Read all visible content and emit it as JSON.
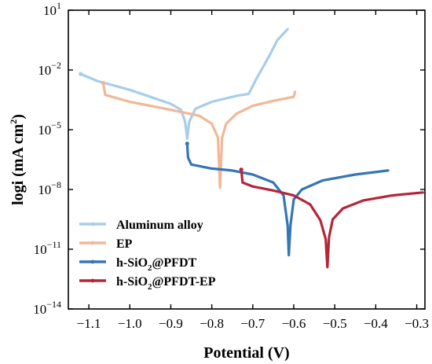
{
  "chart_data": {
    "type": "line",
    "xlabel": "Potential (V)",
    "ylabel": {
      "main": "logi (mA cm",
      "sup": "2",
      "tail": ")"
    },
    "xlim": [
      -1.15,
      -0.28
    ],
    "ylim_log10": [
      -14,
      1
    ],
    "x_ticks": [
      {
        "value": -1.1,
        "label": "−1.1"
      },
      {
        "value": -1.0,
        "label": "−1.0"
      },
      {
        "value": -0.9,
        "label": "−0.9"
      },
      {
        "value": -0.8,
        "label": "−0.8"
      },
      {
        "value": -0.7,
        "label": "−0.7"
      },
      {
        "value": -0.6,
        "label": "−0.6"
      },
      {
        "value": -0.5,
        "label": "−0.5"
      },
      {
        "value": -0.4,
        "label": "−0.4"
      },
      {
        "value": -0.3,
        "label": "−0.3"
      }
    ],
    "y_ticks": [
      {
        "exp": 1,
        "label": "10",
        "sup": "1"
      },
      {
        "exp": -2,
        "label": "10",
        "sup": "−2"
      },
      {
        "exp": -5,
        "label": "10",
        "sup": "−5"
      },
      {
        "exp": -8,
        "label": "10",
        "sup": "−8"
      },
      {
        "exp": -11,
        "label": "10",
        "sup": "−11"
      },
      {
        "exp": -14,
        "label": "10",
        "sup": "−14"
      }
    ],
    "legend_position": "bottom-left",
    "series": [
      {
        "name": "Aluminum alloy",
        "legend": {
          "main": "Aluminum alloy",
          "sub": "",
          "tail": ""
        },
        "color": "#a8cde8",
        "points": [
          [
            -1.12,
            -2.2
          ],
          [
            -1.08,
            -2.55
          ],
          [
            -1.0,
            -3.0
          ],
          [
            -0.95,
            -3.35
          ],
          [
            -0.9,
            -3.7
          ],
          [
            -0.875,
            -4.0
          ],
          [
            -0.865,
            -4.6
          ],
          [
            -0.86,
            -5.45
          ],
          [
            -0.855,
            -4.6
          ],
          [
            -0.84,
            -3.95
          ],
          [
            -0.8,
            -3.6
          ],
          [
            -0.74,
            -3.3
          ],
          [
            -0.71,
            -3.2
          ],
          [
            -0.69,
            -2.4
          ],
          [
            -0.66,
            -1.3
          ],
          [
            -0.64,
            -0.5
          ],
          [
            -0.615,
            0.05
          ]
        ]
      },
      {
        "name": "EP",
        "legend": {
          "main": "EP",
          "sub": "",
          "tail": ""
        },
        "color": "#f0b896",
        "points": [
          [
            -1.065,
            -2.65
          ],
          [
            -1.06,
            -3.25
          ],
          [
            -1.0,
            -3.6
          ],
          [
            -0.9,
            -4.0
          ],
          [
            -0.83,
            -4.3
          ],
          [
            -0.8,
            -4.7
          ],
          [
            -0.785,
            -5.4
          ],
          [
            -0.78,
            -7.9
          ],
          [
            -0.775,
            -5.4
          ],
          [
            -0.765,
            -4.7
          ],
          [
            -0.74,
            -4.2
          ],
          [
            -0.7,
            -3.8
          ],
          [
            -0.65,
            -3.55
          ],
          [
            -0.6,
            -3.35
          ],
          [
            -0.597,
            -3.1
          ]
        ]
      },
      {
        "name": "h-SiO2@PFDT",
        "legend": {
          "main": "h-SiO",
          "sub": "2",
          "tail": "@PFDT"
        },
        "color": "#3576b5",
        "points": [
          [
            -0.86,
            -5.7
          ],
          [
            -0.858,
            -6.4
          ],
          [
            -0.85,
            -6.75
          ],
          [
            -0.8,
            -6.95
          ],
          [
            -0.75,
            -7.05
          ],
          [
            -0.7,
            -7.25
          ],
          [
            -0.65,
            -7.65
          ],
          [
            -0.625,
            -8.3
          ],
          [
            -0.615,
            -9.8
          ],
          [
            -0.612,
            -11.3
          ],
          [
            -0.608,
            -9.8
          ],
          [
            -0.6,
            -8.5
          ],
          [
            -0.58,
            -8.0
          ],
          [
            -0.53,
            -7.55
          ],
          [
            -0.45,
            -7.25
          ],
          [
            -0.37,
            -7.05
          ]
        ]
      },
      {
        "name": "h-SiO2@PFDT-EP",
        "legend": {
          "main": "h-SiO",
          "sub": "2",
          "tail": "@PFDT-EP"
        },
        "color": "#b52638",
        "points": [
          [
            -0.728,
            -7.0
          ],
          [
            -0.725,
            -7.65
          ],
          [
            -0.7,
            -7.85
          ],
          [
            -0.65,
            -8.05
          ],
          [
            -0.6,
            -8.3
          ],
          [
            -0.56,
            -8.75
          ],
          [
            -0.535,
            -9.55
          ],
          [
            -0.522,
            -10.5
          ],
          [
            -0.518,
            -11.9
          ],
          [
            -0.514,
            -10.4
          ],
          [
            -0.505,
            -9.5
          ],
          [
            -0.48,
            -8.95
          ],
          [
            -0.43,
            -8.55
          ],
          [
            -0.36,
            -8.3
          ],
          [
            -0.285,
            -8.15
          ]
        ]
      }
    ]
  }
}
